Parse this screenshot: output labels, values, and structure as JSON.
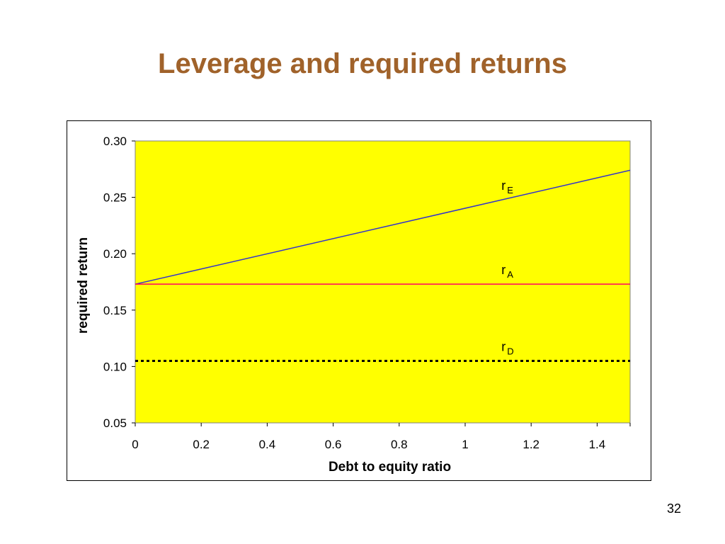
{
  "slide": {
    "title": "Leverage and required returns",
    "page_number": "32"
  },
  "chart_data": {
    "type": "line",
    "title": "",
    "xlabel": "Debt to equity ratio",
    "ylabel": "required return",
    "xlim": [
      0,
      1.5
    ],
    "ylim": [
      0.05,
      0.3
    ],
    "x_ticks": [
      "0",
      "0.2",
      "0.4",
      "0.6",
      "0.8",
      "1",
      "1.2",
      "1.4"
    ],
    "x_tick_values": [
      0,
      0.2,
      0.4,
      0.6,
      0.8,
      1.0,
      1.2,
      1.4
    ],
    "y_ticks": [
      "0.05",
      "0.10",
      "0.15",
      "0.20",
      "0.25",
      "0.30"
    ],
    "y_tick_values": [
      0.05,
      0.1,
      0.15,
      0.2,
      0.25,
      0.3
    ],
    "plot_background": "#ffff00",
    "grid": false,
    "legend": "none",
    "series": [
      {
        "name": "rE",
        "label_main": "r",
        "label_sub": "E",
        "color": "#3333cc",
        "style": "solid",
        "x": [
          0,
          1.5
        ],
        "y": [
          0.173,
          0.274
        ]
      },
      {
        "name": "rA",
        "label_main": "r",
        "label_sub": "A",
        "color": "#ff0066",
        "style": "solid",
        "x": [
          0,
          1.5
        ],
        "y": [
          0.173,
          0.173
        ]
      },
      {
        "name": "rD",
        "label_main": "r",
        "label_sub": "D",
        "color": "#000000",
        "style": "dotted",
        "x": [
          0,
          1.5
        ],
        "y": [
          0.105,
          0.105
        ]
      }
    ]
  }
}
